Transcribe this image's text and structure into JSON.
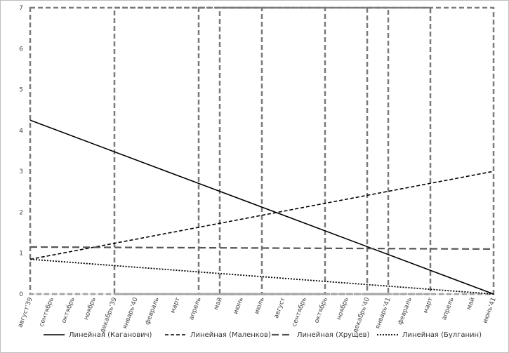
{
  "chart_data": {
    "type": "line",
    "title": "",
    "xlabel": "",
    "ylabel": "",
    "ylim": [
      0,
      7
    ],
    "y_ticks": [
      "0",
      "1",
      "2",
      "3",
      "4",
      "5",
      "6",
      "7"
    ],
    "categories": [
      "август'39",
      "сентябрь",
      "октябрь",
      "ноябрь",
      "декабрь'39",
      "январь'40",
      "февраль",
      "март",
      "апрель",
      "май",
      "июнь",
      "июль",
      "август",
      "сентябрь",
      "октябрь",
      "ноябрь",
      "декабрь'40",
      "январь'41",
      "февраль",
      "март",
      "апрель",
      "май",
      "июнь'41"
    ],
    "grid": false,
    "legend_position": "bottom",
    "highlight_periods": [
      {
        "start": "август'39",
        "end": "октябрь"
      },
      {
        "start": "декабрь'39",
        "end": "март"
      },
      {
        "start": "апрель",
        "end": "июль"
      },
      {
        "start": "декабрь'40",
        "end": "январь'41"
      },
      {
        "start": "май",
        "end": "июнь'41"
      }
    ],
    "series": [
      {
        "name": "Линейная (Каганович)",
        "style": "solid",
        "color": "#000000",
        "start": 4.25,
        "end": 0.0
      },
      {
        "name": "Линейная (Маленков)",
        "style": "dashed",
        "color": "#000000",
        "start": 0.85,
        "end": 3.0
      },
      {
        "name": "Линейная (Хрущев)",
        "style": "longdash",
        "color": "#555555",
        "start": 1.15,
        "end": 1.1
      },
      {
        "name": "Линейная (Булганин)",
        "style": "dotted",
        "color": "#000000",
        "start": 0.85,
        "end": 0.0
      }
    ]
  }
}
